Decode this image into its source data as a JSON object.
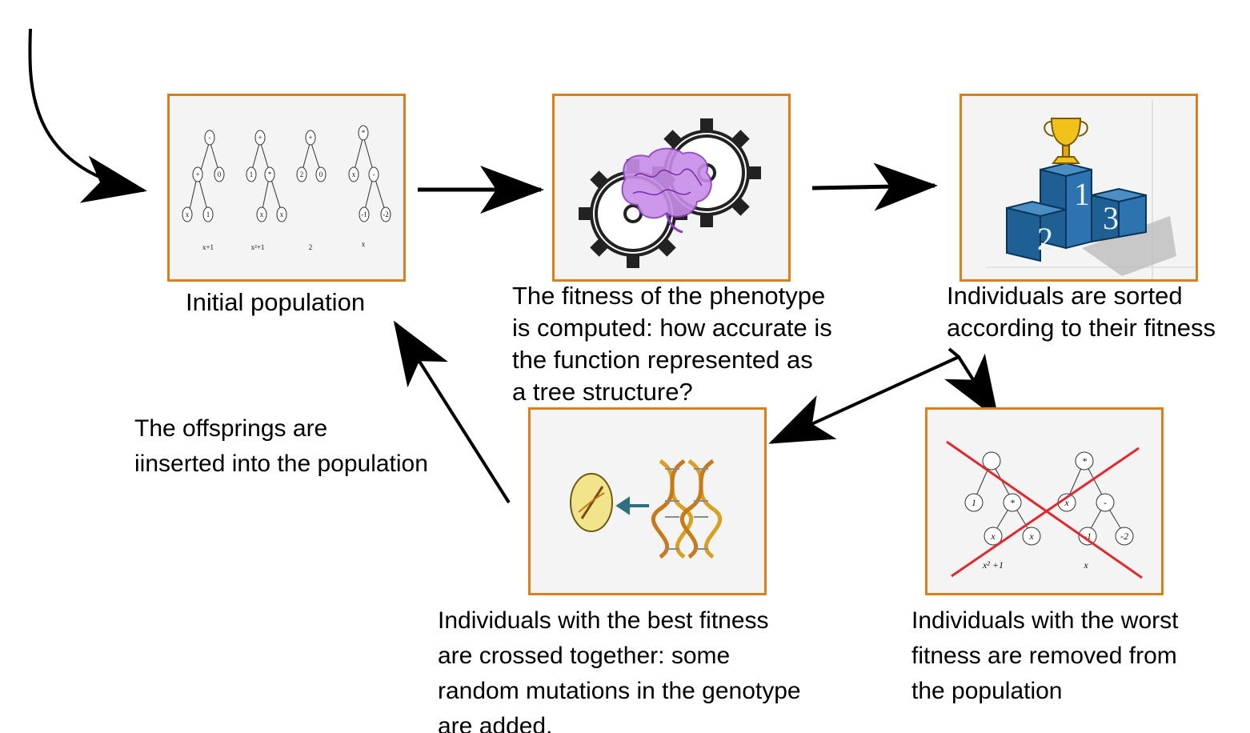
{
  "accent_colors": {
    "panel_border": "#d9801e",
    "cross": "#e0282f",
    "arrow": "#000000"
  },
  "panels": {
    "initial": {
      "caption": "Initial population",
      "trees": [
        {
          "root": "-",
          "left_mid": "+",
          "right": "0",
          "leaf1": "x",
          "leaf2": "1",
          "expr": "x+1"
        },
        {
          "root": "+",
          "left_mid": "1",
          "right": "*",
          "leaf1": "x",
          "leaf2": "x",
          "expr": "x²+1"
        },
        {
          "root": "+",
          "left_mid": "2",
          "right": "0",
          "expr": "2"
        },
        {
          "root": "*",
          "left_mid": "x",
          "right": "-",
          "leaf1": "-1",
          "leaf2": "-2",
          "expr": "x"
        }
      ],
      "icon": "expression-trees-icon"
    },
    "fitness": {
      "caption_lines": [
        "The fitness of the phenotype",
        "is computed: how accurate is",
        "the function represented as",
        "a tree structure?"
      ],
      "icon": "brain-gears-icon"
    },
    "sorted": {
      "caption_lines": [
        "Individuals are sorted",
        "according to their fitness"
      ],
      "icon": "podium-trophy-icon",
      "podium_labels": [
        "1",
        "2",
        "3"
      ]
    },
    "crossover": {
      "caption_lines": [
        "Individuals with the best fitness",
        "are crossed together: some",
        "random mutations in the genotype",
        "are added."
      ],
      "icon": "dna-egg-icon"
    },
    "removed": {
      "caption_lines": [
        "Individuals with the worst",
        "fitness are removed from",
        "the population"
      ],
      "icon": "crossed-trees-icon",
      "left_tree": {
        "root": "",
        "a": "1",
        "b": "*",
        "c": "x",
        "d": "x",
        "expr": "x² +1"
      },
      "right_tree": {
        "root": "*",
        "a": "x",
        "b": "-",
        "c": "-1",
        "d": "-2",
        "expr": "x"
      }
    }
  },
  "offspring_caption_lines": [
    "The offsprings are",
    "iinserted into the population"
  ]
}
